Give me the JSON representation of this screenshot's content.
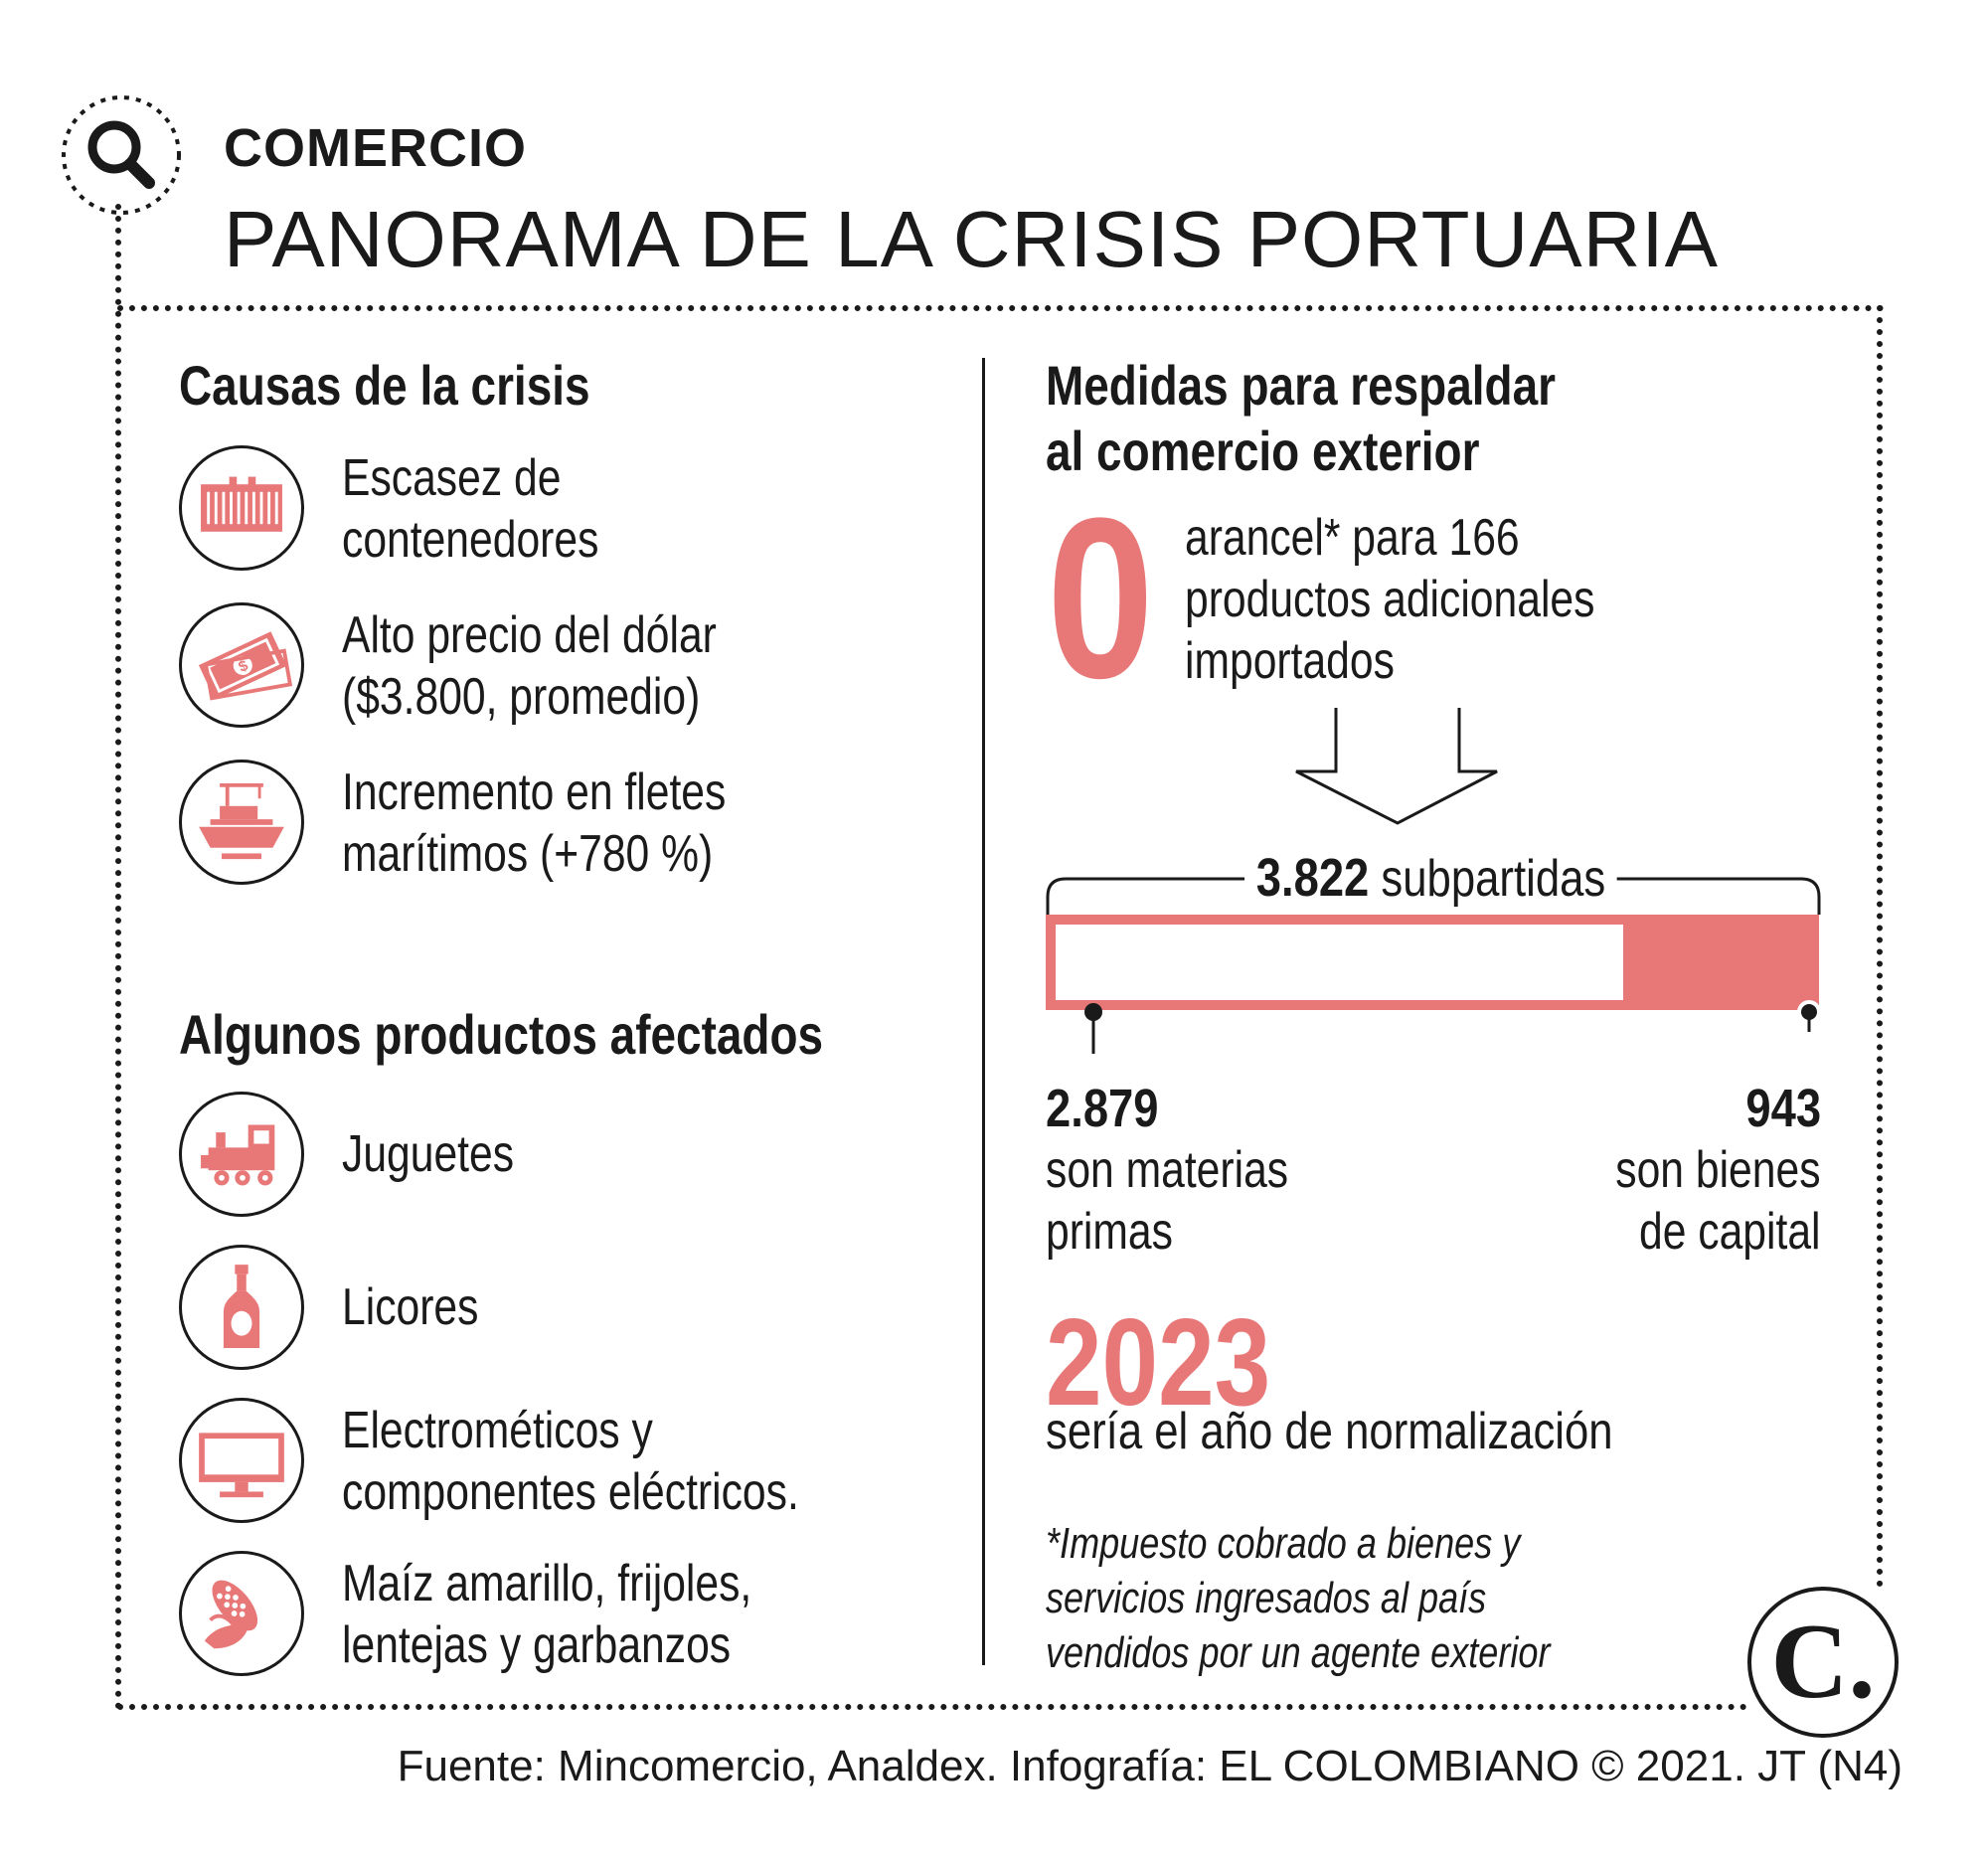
{
  "header": {
    "kicker": "COMERCIO",
    "title": "PANORAMA DE LA CRISIS PORTUARIA"
  },
  "causes": {
    "heading": "Causas de la crisis",
    "items": [
      {
        "icon": "container-icon",
        "line1": "Escasez de",
        "line2": "contenedores"
      },
      {
        "icon": "money-icon",
        "line1": "Alto precio del dólar",
        "line2": "($3.800, promedio)"
      },
      {
        "icon": "ship-icon",
        "line1": "Incremento en fletes",
        "line2": "marítimos (+780 %)"
      }
    ]
  },
  "products": {
    "heading": "Algunos productos afectados",
    "items": [
      {
        "icon": "toy-train-icon",
        "line1": "Juguetes",
        "line2": ""
      },
      {
        "icon": "bottle-icon",
        "line1": "Licores",
        "line2": ""
      },
      {
        "icon": "monitor-icon",
        "line1": "Electrométicos y",
        "line2": "componentes eléctricos."
      },
      {
        "icon": "corn-icon",
        "line1": "Maíz amarillo, frijoles,",
        "line2": "lentejas y garbanzos"
      }
    ]
  },
  "measures": {
    "heading_line1": "Medidas para respaldar",
    "heading_line2": "al comercio exterior",
    "tariff_value": "0",
    "tariff_line1": "arancel* para 166",
    "tariff_line2": "productos adicionales",
    "tariff_line3": "importados",
    "subpartidas_value": "3.822",
    "subpartidas_label": "subpartidas",
    "raw_materials_value": "2.879",
    "raw_materials_line1": "son materias",
    "raw_materials_line2": "primas",
    "capital_goods_value": "943",
    "capital_goods_line1": "son bienes",
    "capital_goods_line2": "de capital",
    "raw_materials_share": 0.753,
    "year": "2023",
    "year_desc": "sería el año de normalización",
    "footnote_line1": "*Impuesto cobrado a bienes y",
    "footnote_line2": "servicios ingresados al país",
    "footnote_line3": "vendidos por un agente exterior"
  },
  "logo_letter": "C.",
  "source": "Fuente: Mincomercio, Analdex. Infografía: EL COLOMBIANO © 2021. JT (N4)",
  "colors": {
    "accent": "#e87878",
    "ink": "#1a1a1a"
  }
}
